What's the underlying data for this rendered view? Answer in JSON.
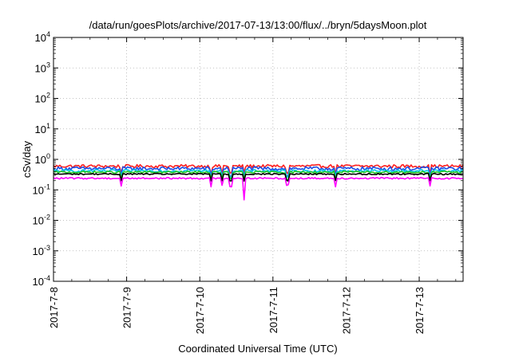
{
  "chart_data": {
    "type": "line",
    "title": "/data/run/goesPlots/archive/2017-07-13/13:00/flux/../bryn/5daysMoon.plot",
    "xlabel": "Coordinated Universal Time (UTC)",
    "ylabel": "cSv/day",
    "y_scale": "log",
    "ylim": [
      0.0001,
      10000
    ],
    "xlim_days": [
      0,
      5.6
    ],
    "grid": true,
    "y_ticks": [
      {
        "base": "10",
        "exp": "-4",
        "value": 0.0001
      },
      {
        "base": "10",
        "exp": "-3",
        "value": 0.001
      },
      {
        "base": "10",
        "exp": "-2",
        "value": 0.01
      },
      {
        "base": "10",
        "exp": "-1",
        "value": 0.1
      },
      {
        "base": "10",
        "exp": "0",
        "value": 1
      },
      {
        "base": "10",
        "exp": "1",
        "value": 10
      },
      {
        "base": "10",
        "exp": "2",
        "value": 100
      },
      {
        "base": "10",
        "exp": "3",
        "value": 1000
      },
      {
        "base": "10",
        "exp": "4",
        "value": 10000
      }
    ],
    "x_ticks": [
      {
        "label": "2017-7-8",
        "day": 0
      },
      {
        "label": "2017-7-9",
        "day": 1
      },
      {
        "label": "2017-7-10",
        "day": 2
      },
      {
        "label": "2017-7-11",
        "day": 3
      },
      {
        "label": "2017-7-12",
        "day": 4
      },
      {
        "label": "2017-7-13",
        "day": 5
      }
    ],
    "series": [
      {
        "color": "#ff2020",
        "level": 0.6,
        "jitter": 0.12
      },
      {
        "color": "#1a4ee8",
        "level": 0.5,
        "jitter": 0.14
      },
      {
        "color": "#00c8e6",
        "level": 0.42,
        "jitter": 0.1
      },
      {
        "color": "#22c522",
        "level": 0.38,
        "jitter": 0.08
      },
      {
        "color": "#000000",
        "level": 0.33,
        "jitter": 0.05
      },
      {
        "color": "#ff00ff",
        "level": 0.24,
        "jitter": 0.06
      }
    ],
    "dips": [
      {
        "day": 0.92,
        "factor": 0.55
      },
      {
        "day": 2.15,
        "factor": 0.5
      },
      {
        "day": 2.3,
        "factor": 0.6
      },
      {
        "day": 2.42,
        "factor": 0.55
      },
      {
        "day": 2.6,
        "factor": 0.2
      },
      {
        "day": 3.2,
        "factor": 0.6
      },
      {
        "day": 3.85,
        "factor": 0.55
      },
      {
        "day": 5.15,
        "factor": 0.55
      }
    ]
  }
}
